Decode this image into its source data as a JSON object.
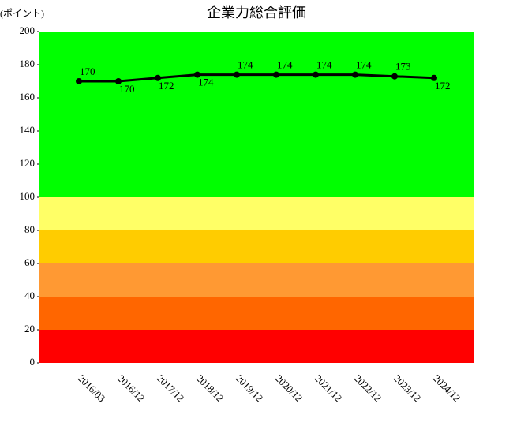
{
  "chart_data": {
    "type": "line",
    "title": "企業力総合評価",
    "y_label": "(ポイント)",
    "categories": [
      "2016/03",
      "2016/12",
      "2017/12",
      "2018/12",
      "2019/12",
      "2020/12",
      "2021/12",
      "2022/12",
      "2023/12",
      "2024/12"
    ],
    "values": [
      170,
      170,
      172,
      174,
      174,
      174,
      174,
      174,
      173,
      172
    ],
    "color": "#000000",
    "ylim": [
      0,
      200
    ],
    "yticks": [
      0,
      20,
      40,
      60,
      80,
      100,
      120,
      140,
      160,
      180,
      200
    ],
    "bands": [
      {
        "from": 0,
        "to": 20,
        "color": "#ff0000"
      },
      {
        "from": 20,
        "to": 40,
        "color": "#ff6600"
      },
      {
        "from": 40,
        "to": 60,
        "color": "#ff9933"
      },
      {
        "from": 60,
        "to": 80,
        "color": "#ffcc00"
      },
      {
        "from": 80,
        "to": 100,
        "color": "#ffff66"
      },
      {
        "from": 100,
        "to": 200,
        "color": "#00ff00"
      }
    ]
  }
}
